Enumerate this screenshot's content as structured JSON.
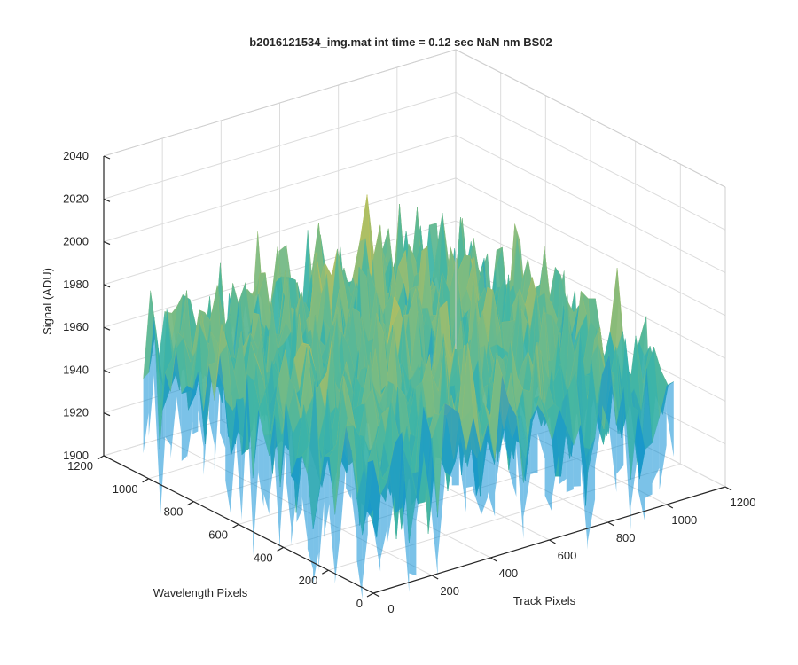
{
  "chart_data": {
    "type": "surface",
    "title": "b2016121534_img.mat int time = 0.12 sec  NaN nm BS02",
    "xlabel": "Track Pixels",
    "ylabel": "Wavelength Pixels",
    "zlabel": "Signal (ADU)",
    "xlim": [
      0,
      1200
    ],
    "ylim": [
      0,
      1200
    ],
    "zlim": [
      1900,
      2040
    ],
    "x_ticks": [
      "0",
      "200",
      "400",
      "600",
      "800",
      "1000",
      "1200"
    ],
    "y_ticks": [
      "0",
      "200",
      "400",
      "600",
      "800",
      "1000",
      "1200"
    ],
    "z_ticks": [
      "1900",
      "1920",
      "1940",
      "1960",
      "1980",
      "2000",
      "2020",
      "2040"
    ],
    "grid": true,
    "colormap": "parula",
    "colors": {
      "low": "#0f8fd6",
      "mid": "#3fb5a6",
      "high": "#d8c24a"
    },
    "surface": {
      "x_extent": [
        0,
        1024
      ],
      "y_extent": [
        0,
        1024
      ],
      "mean_signal": 1955,
      "min_signal": 1900,
      "max_signal": 2035,
      "summary": [
        {
          "x": 0,
          "y": 0,
          "z": 1950
        },
        {
          "x": 1024,
          "y": 0,
          "z": 1948
        },
        {
          "x": 0,
          "y": 1024,
          "z": 1956
        },
        {
          "x": 1024,
          "y": 1024,
          "z": 1955
        },
        {
          "x": 512,
          "y": 512,
          "z": 1962
        }
      ]
    }
  }
}
